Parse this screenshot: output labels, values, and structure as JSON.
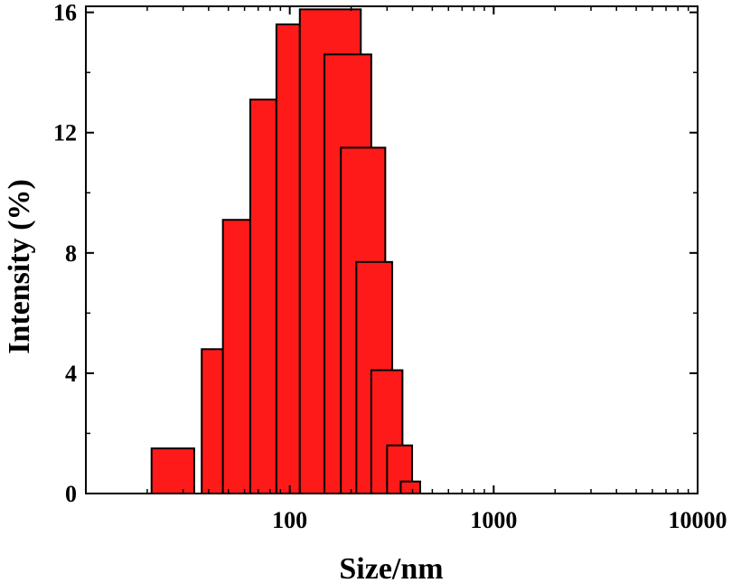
{
  "chart_data": {
    "type": "bar",
    "xlabel": "Size/nm",
    "ylabel": "Intensity (%)",
    "x_scale": "log",
    "xlim": [
      10,
      10000
    ],
    "ylim": [
      0,
      16.2
    ],
    "x_tick_labels": [
      "100",
      "1000",
      "10000"
    ],
    "y_tick_labels": [
      "0",
      "4",
      "8",
      "12",
      "16"
    ],
    "x_ticks": [
      100,
      1000,
      10000
    ],
    "y_ticks": [
      0,
      4,
      8,
      12,
      16
    ],
    "bins": [
      {
        "x_start": 21,
        "x_end": 34,
        "value": 1.5
      },
      {
        "x_start": 37,
        "x_end": 47,
        "value": 4.8
      },
      {
        "x_start": 47,
        "x_end": 64,
        "value": 9.1
      },
      {
        "x_start": 64,
        "x_end": 86,
        "value": 13.1
      },
      {
        "x_start": 86,
        "x_end": 112,
        "value": 15.6
      },
      {
        "x_start": 112,
        "x_end": 223,
        "value": 16.1
      },
      {
        "x_start": 148,
        "x_end": 251,
        "value": 14.6
      },
      {
        "x_start": 178,
        "x_end": 294,
        "value": 11.5
      },
      {
        "x_start": 212,
        "x_end": 318,
        "value": 7.7
      },
      {
        "x_start": 251,
        "x_end": 357,
        "value": 4.1
      },
      {
        "x_start": 300,
        "x_end": 398,
        "value": 1.6
      },
      {
        "x_start": 350,
        "x_end": 436,
        "value": 0.4
      }
    ],
    "bar_color": "#ff1a1a",
    "bar_edge_color": "#000000",
    "grid": false,
    "legend": false
  }
}
